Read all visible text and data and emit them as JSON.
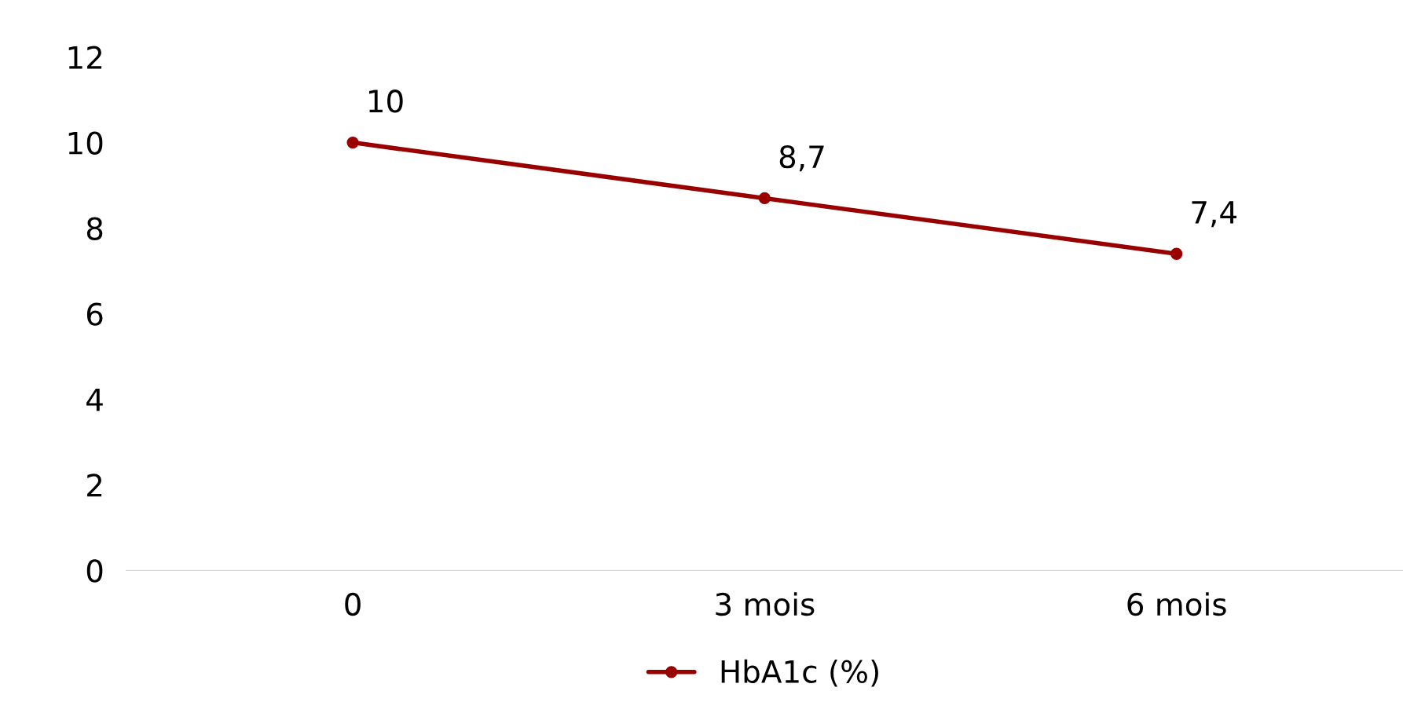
{
  "chart_data": {
    "type": "line",
    "categories": [
      "0",
      "3 mois",
      "6 mois"
    ],
    "series": [
      {
        "name": "HbA1c (%)",
        "color": "#990000",
        "values": [
          10,
          8.7,
          7.4
        ],
        "value_labels": [
          "10",
          "8,7",
          "7,4"
        ]
      }
    ],
    "ylim": [
      0,
      12
    ],
    "yticks": [
      0,
      2,
      4,
      6,
      8,
      10,
      12
    ],
    "grid": false,
    "legend": "bottom",
    "marker": "circle",
    "line_style": "solid"
  }
}
